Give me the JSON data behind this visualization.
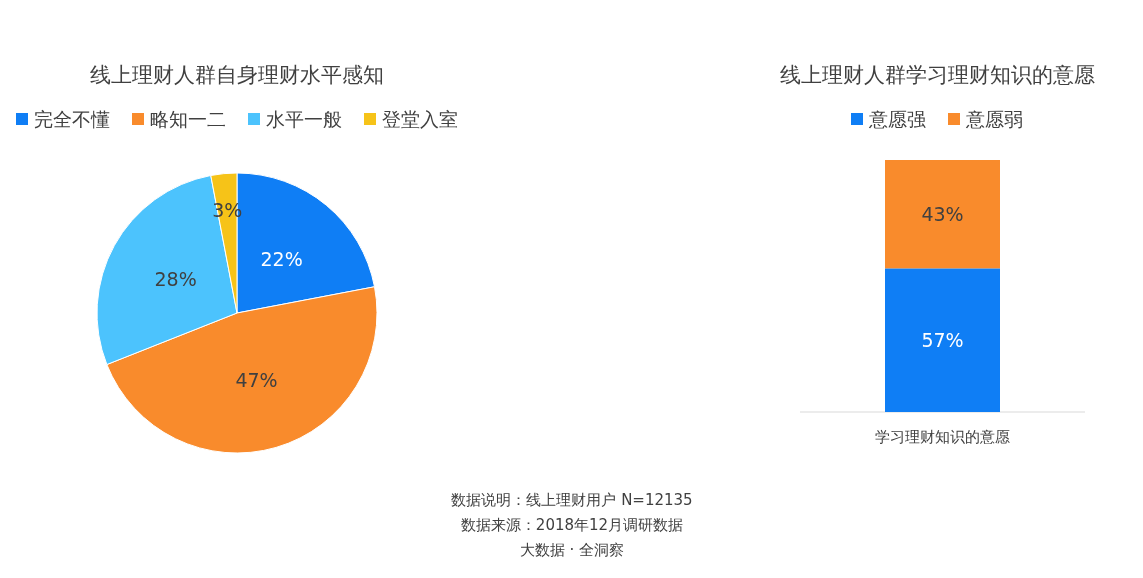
{
  "chart_data": [
    {
      "type": "pie",
      "title": "线上理财人群自身理财水平感知",
      "categories": [
        "完全不懂",
        "略知一二",
        "水平一般",
        "登堂入室"
      ],
      "values": [
        22,
        47,
        28,
        3
      ],
      "colors": [
        "#0f7ef5",
        "#f98b2c",
        "#4cc3fd",
        "#f6c318"
      ],
      "value_labels": [
        "22%",
        "47%",
        "28%",
        "3%"
      ],
      "legend": "top"
    },
    {
      "type": "bar",
      "stacked": true,
      "title": "线上理财人群学习理财知识的意愿",
      "categories": [
        "学习理财知识的意愿"
      ],
      "ylim": [
        0,
        100
      ],
      "legend": "top",
      "series": [
        {
          "name": "意愿强",
          "color": "#0f7ef5",
          "values": [
            57
          ],
          "value_labels": [
            "57%"
          ]
        },
        {
          "name": "意愿弱",
          "color": "#f98b2c",
          "values": [
            43
          ],
          "value_labels": [
            "43%"
          ]
        }
      ],
      "annotations": [
        "数据说明：线上理财用户 N=12135",
        "数据来源：2018年12月调研数据",
        "大数据 · 全洞察"
      ]
    }
  ]
}
